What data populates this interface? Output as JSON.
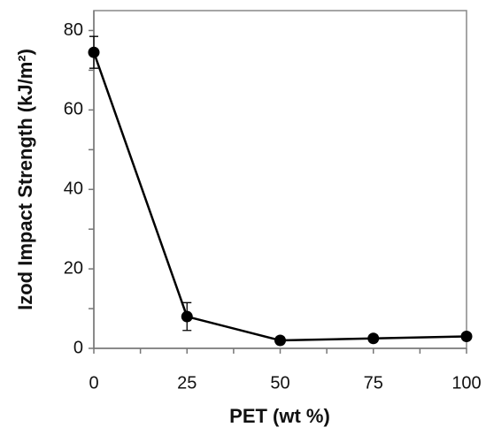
{
  "chart_data": {
    "type": "line",
    "x_label": "PET (wt %)",
    "y_label": "Izod Impact Strength (kJ/m²)",
    "x": [
      0,
      25,
      50,
      75,
      100
    ],
    "series": [
      {
        "color": "#000000",
        "values": [
          74.5,
          8,
          2,
          2.5,
          3
        ],
        "errors": [
          4,
          3.5,
          0.8,
          0.8,
          0.5
        ]
      }
    ],
    "xlim": [
      0,
      100
    ],
    "xticks": [
      0,
      25,
      50,
      75,
      100
    ],
    "xminor_ticks": [
      12.5,
      37.5,
      62.5,
      87.5
    ],
    "ylim": [
      0,
      85
    ],
    "yticks": [
      0,
      20,
      40,
      60,
      80
    ],
    "yminor_ticks": [
      10,
      30,
      50,
      70
    ],
    "grid": false
  }
}
